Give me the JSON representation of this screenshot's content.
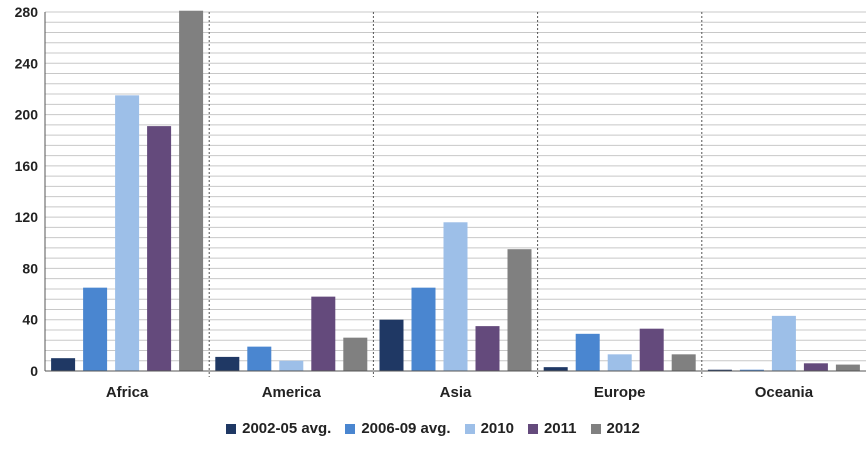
{
  "chart_data": {
    "type": "bar",
    "categories": [
      "Africa",
      "America",
      "Asia",
      "Europe",
      "Oceania"
    ],
    "series": [
      {
        "name": "2002-05 avg.",
        "color": "#1f3864",
        "values": [
          10,
          11,
          40,
          3,
          1
        ]
      },
      {
        "name": "2006-09 avg.",
        "color": "#4a86d0",
        "values": [
          65,
          19,
          65,
          29,
          1
        ]
      },
      {
        "name": "2010",
        "color": "#9dbfe8",
        "values": [
          215,
          8,
          116,
          13,
          43
        ]
      },
      {
        "name": "2011",
        "color": "#644a7c",
        "values": [
          191,
          58,
          35,
          33,
          6
        ]
      },
      {
        "name": "2012",
        "color": "#808080",
        "values": [
          281,
          26,
          95,
          13,
          5
        ]
      }
    ],
    "yticks": [
      "0",
      "40",
      "80",
      "120",
      "160",
      "200",
      "240",
      "280"
    ],
    "ylim": [
      0,
      280
    ],
    "grid": true,
    "legend_position": "bottom"
  }
}
